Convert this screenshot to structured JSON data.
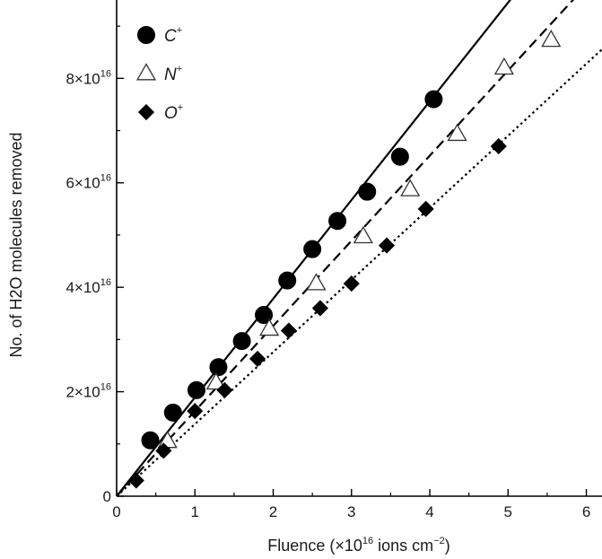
{
  "chart_data": {
    "type": "scatter",
    "xlabel": "Fluence (×10",
    "xlabel_exp": "16",
    "xlabel_unit": " ions cm",
    "xlabel_unit_exp": "−2",
    "xlabel_close": ")",
    "ylabel": "No. of H2O molecules removed",
    "xlim": [
      0,
      6.2
    ],
    "ylim": [
      0,
      9.5e+16
    ],
    "x_ticks": [
      0,
      1,
      2,
      3,
      4,
      5,
      6
    ],
    "y_ticks": [
      {
        "value": 0,
        "mant": "0",
        "exp": ""
      },
      {
        "value": 2e+16,
        "mant": "2×10",
        "exp": "16"
      },
      {
        "value": 4e+16,
        "mant": "4×10",
        "exp": "16"
      },
      {
        "value": 6e+16,
        "mant": "6×10",
        "exp": "16"
      },
      {
        "value": 8e+16,
        "mant": "8×10",
        "exp": "16"
      }
    ],
    "legend_position": "top-left",
    "series": [
      {
        "name": "C",
        "name_sup": "+",
        "marker": "circle",
        "fill": "#000000",
        "line": "solid",
        "slope": 1.89e+16,
        "x": [
          0.43,
          0.72,
          1.02,
          1.3,
          1.6,
          1.88,
          2.18,
          2.5,
          2.82,
          3.2,
          3.62,
          4.05
        ],
        "y": [
          1.07e+16,
          1.6e+16,
          2.03e+16,
          2.47e+16,
          2.97e+16,
          3.47e+16,
          4.13e+16,
          4.73e+16,
          5.27e+16,
          5.83e+16,
          6.5e+16,
          7.6e+16
        ]
      },
      {
        "name": "N",
        "name_sup": "+",
        "marker": "triangle",
        "fill": "#ffffff",
        "line": "dashed",
        "slope": 1.63e+16,
        "x": [
          0.65,
          1.27,
          1.95,
          2.55,
          3.15,
          3.75,
          4.35,
          4.95,
          5.55
        ],
        "y": [
          1.05e+16,
          2.17e+16,
          3.2e+16,
          4.07e+16,
          4.97e+16,
          5.87e+16,
          6.93e+16,
          8.2e+16,
          8.73e+16
        ]
      },
      {
        "name": "O",
        "name_sup": "+",
        "marker": "diamond",
        "fill": "#000000",
        "line": "dotted",
        "slope": 1.38e+16,
        "x": [
          0.25,
          0.6,
          1.0,
          1.38,
          1.8,
          2.2,
          2.6,
          3.0,
          3.45,
          3.95,
          4.88
        ],
        "y": [
          3000000000000000.0,
          8700000000000000.0,
          1.63e+16,
          2.03e+16,
          2.63e+16,
          3.17e+16,
          3.6e+16,
          4.07e+16,
          4.8e+16,
          5.5e+16,
          6.7e+16
        ]
      }
    ]
  }
}
